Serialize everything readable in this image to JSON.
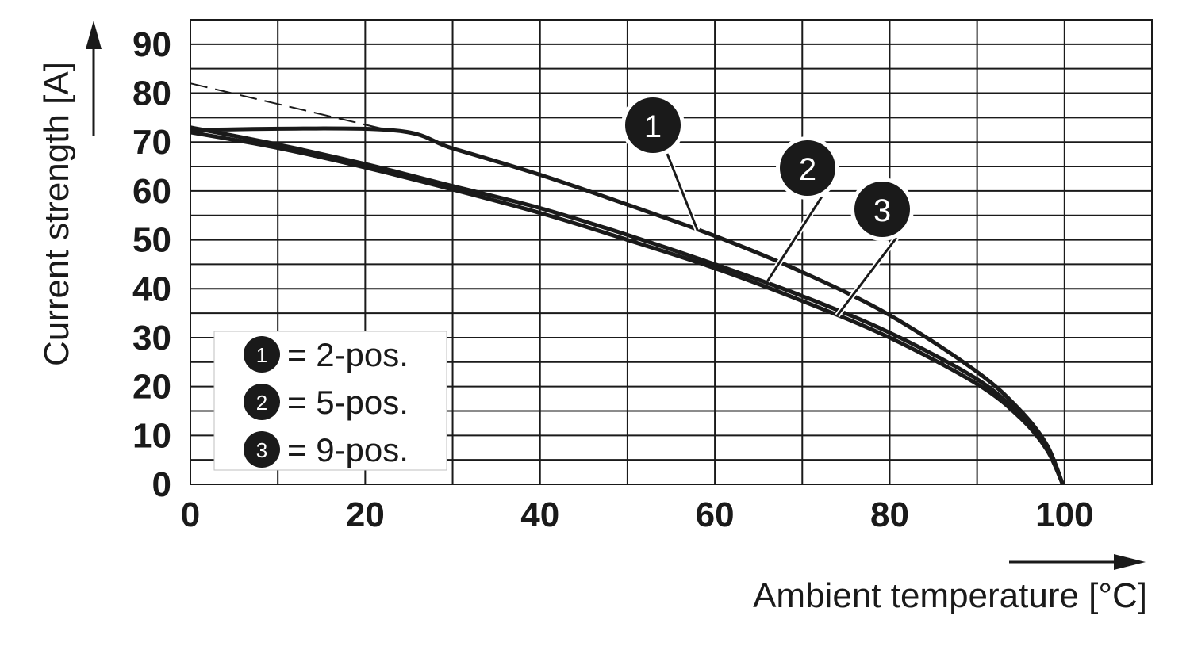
{
  "chart_data": {
    "type": "line",
    "xlabel": "Ambient temperature [°C]",
    "ylabel": "Current strength [A]",
    "xlim": [
      0,
      110
    ],
    "ylim": [
      0,
      95
    ],
    "x_ticks": [
      "0",
      "20",
      "40",
      "60",
      "80",
      "100"
    ],
    "x_tick_values": [
      0,
      20,
      40,
      60,
      80,
      100
    ],
    "y_ticks": [
      "0",
      "10",
      "20",
      "30",
      "40",
      "50",
      "60",
      "70",
      "80",
      "90"
    ],
    "y_tick_values": [
      0,
      10,
      20,
      30,
      40,
      50,
      60,
      70,
      80,
      90
    ],
    "grid": true,
    "grid_x_step": 10,
    "grid_y_step": 5,
    "series": [
      {
        "name": "2-pos.",
        "marker_label": "1",
        "dashed_extension": {
          "x": [
            0,
            22.5
          ],
          "y": [
            82,
            72.5
          ]
        },
        "x": [
          0,
          22.5,
          30,
          40,
          50,
          60,
          70,
          80,
          90,
          95,
          98,
          99.8
        ],
        "y": [
          72.5,
          72.5,
          68.7,
          63.3,
          57.2,
          50.8,
          43.4,
          34.6,
          23.0,
          15.0,
          8.0,
          0
        ]
      },
      {
        "name": "5-pos.",
        "marker_label": "2",
        "x": [
          0,
          10,
          20,
          30,
          40,
          50,
          60,
          70,
          80,
          90,
          95,
          98,
          99.8
        ],
        "y": [
          73,
          69.5,
          65.5,
          61,
          56.5,
          51,
          45,
          38.5,
          31,
          21.5,
          14,
          7.5,
          0
        ]
      },
      {
        "name": "9-pos.",
        "marker_label": "3",
        "x": [
          0,
          10,
          20,
          30,
          40,
          50,
          60,
          70,
          80,
          90,
          95,
          98,
          99.8
        ],
        "y": [
          72,
          68.8,
          64.8,
          60.3,
          55.5,
          50,
          44.2,
          37.5,
          30,
          20.5,
          13.5,
          7.0,
          0
        ]
      }
    ],
    "legend": {
      "placement": "bottom-left",
      "entries": [
        {
          "num": "1",
          "text": "= 2-pos."
        },
        {
          "num": "2",
          "text": "= 5-pos."
        },
        {
          "num": "3",
          "text": "= 9-pos."
        }
      ]
    },
    "callouts": [
      {
        "num": "1",
        "series": 0,
        "point_x": 58,
        "point_y": 52
      },
      {
        "num": "2",
        "series": 1,
        "point_x": 66,
        "point_y": 41.5
      },
      {
        "num": "3",
        "series": 2,
        "point_x": 74,
        "point_y": 34.5
      }
    ]
  }
}
